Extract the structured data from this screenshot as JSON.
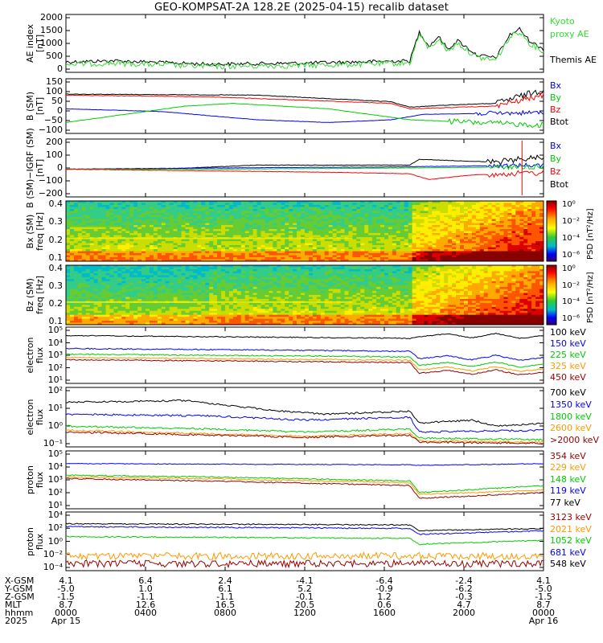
{
  "title": "GEO-KOMPSAT-2A 128.2E (2025-04-15) recalib dataset",
  "colors": {
    "black": "#000000",
    "blue": "#0000ff",
    "green": "#00cc00",
    "red": "#ff0000",
    "orange": "#ff9900",
    "darkred": "#990000",
    "lime": "#33dd33"
  },
  "panels": [
    {
      "id": "ae",
      "ylabel": [
        "AE index",
        "[nT]"
      ],
      "yticks": [
        "2000",
        "1500",
        "1000",
        "500",
        "0"
      ],
      "legend": [
        {
          "text": "Kyoto",
          "color": "#33dd33"
        },
        {
          "text": "proxy AE",
          "color": "#33dd33"
        },
        {
          "text": "",
          "color": "#000000"
        },
        {
          "text": "Themis AE",
          "color": "#000000"
        }
      ]
    },
    {
      "id": "bsm",
      "ylabel": [
        "B (SM)",
        "[nT]"
      ],
      "yticks": [
        "150",
        "100",
        "50",
        "0",
        "−50",
        "−100"
      ],
      "legend": [
        {
          "text": "Bx",
          "color": "#0000ff"
        },
        {
          "text": "By",
          "color": "#00cc00"
        },
        {
          "text": "Bz",
          "color": "#ff0000"
        },
        {
          "text": "Btot",
          "color": "#000000"
        }
      ]
    },
    {
      "id": "bsm-igrf",
      "ylabel": [
        "B (SM)−IGRF (SM)",
        "[nT]"
      ],
      "yticks": [
        "200",
        "100",
        "0",
        "−100",
        "−200"
      ],
      "legend": [
        {
          "text": "Bx",
          "color": "#0000ff"
        },
        {
          "text": "By",
          "color": "#00cc00"
        },
        {
          "text": "Bz",
          "color": "#ff0000"
        },
        {
          "text": "Btot",
          "color": "#000000"
        }
      ]
    },
    {
      "id": "bx-spec",
      "ylabel": [
        "Bx (SM)",
        "freq [Hz]"
      ],
      "yticks": [
        "0.4",
        "0.3",
        "0.2",
        "0.1"
      ],
      "cbticks": [
        "10⁰",
        "10⁻²",
        "10⁻⁴",
        "10⁻⁶"
      ],
      "cblabel": "PSD [nT²/Hz]"
    },
    {
      "id": "bz-spec",
      "ylabel": [
        "Bz (SM)",
        "freq [Hz]"
      ],
      "yticks": [
        "0.4",
        "0.3",
        "0.2",
        "0.1"
      ],
      "cbticks": [
        "10⁰",
        "10⁻²",
        "10⁻⁴",
        "10⁻⁶"
      ],
      "cblabel": "PSD [nT²/Hz]"
    },
    {
      "id": "e-low",
      "ylabel": [
        "electron",
        "flux"
      ],
      "yticks": [
        "10⁵",
        "10⁴",
        "10³",
        "10²",
        "10¹"
      ],
      "legend": [
        {
          "text": "100 keV",
          "color": "#000000"
        },
        {
          "text": "150 keV",
          "color": "#0000ff"
        },
        {
          "text": "225 keV",
          "color": "#00cc00"
        },
        {
          "text": "325 keV",
          "color": "#ff9900"
        },
        {
          "text": "450 keV",
          "color": "#990000"
        }
      ]
    },
    {
      "id": "e-high",
      "ylabel": [
        "electron",
        "flux"
      ],
      "yticks": [
        "10²",
        "10¹",
        "10⁰",
        "10⁻¹"
      ],
      "legend": [
        {
          "text": "700 keV",
          "color": "#000000"
        },
        {
          "text": "1350 keV",
          "color": "#0000ff"
        },
        {
          "text": "1800 keV",
          "color": "#00cc00"
        },
        {
          "text": "2600 keV",
          "color": "#ff9900"
        },
        {
          "text": ">2000 keV",
          "color": "#990000"
        }
      ]
    },
    {
      "id": "p-low",
      "ylabel": [
        "proton",
        "flux"
      ],
      "yticks": [
        "10⁵",
        "10⁴",
        "10³",
        "10²",
        "10¹"
      ],
      "legend": [
        {
          "text": "354 keV",
          "color": "#990000"
        },
        {
          "text": "229 keV",
          "color": "#ff9900"
        },
        {
          "text": "148 keV",
          "color": "#00cc00"
        },
        {
          "text": "119 keV",
          "color": "#0000ff"
        },
        {
          "text": "77 keV",
          "color": "#000000"
        }
      ]
    },
    {
      "id": "p-high",
      "ylabel": [
        "proton",
        "flux"
      ],
      "yticks": [
        "10⁴",
        "10²",
        "10⁰",
        "10⁻²",
        "10⁻⁴"
      ],
      "legend": [
        {
          "text": "3123 keV",
          "color": "#990000"
        },
        {
          "text": "2021 keV",
          "color": "#ff9900"
        },
        {
          "text": "1052 keV",
          "color": "#00cc00"
        },
        {
          "text": "681 keV",
          "color": "#0000ff"
        },
        {
          "text": "548 keV",
          "color": "#000000"
        }
      ]
    }
  ],
  "bottom": {
    "labels": [
      "X-GSM",
      "Y-GSM",
      "Z-GSM",
      "MLT",
      "hhmm",
      "2025"
    ],
    "columns": [
      [
        "4.1",
        "-5.0",
        "-1.5",
        "8.7",
        "0000",
        "Apr 15"
      ],
      [
        "6.4",
        "1.0",
        "-1.1",
        "12.6",
        "0400",
        ""
      ],
      [
        "2.4",
        "6.1",
        "-1.1",
        "16.5",
        "0800",
        ""
      ],
      [
        "-4.1",
        "5.2",
        "-0.1",
        "20.5",
        "1200",
        ""
      ],
      [
        "-6.4",
        "-0.9",
        "1.2",
        "0.6",
        "1600",
        ""
      ],
      [
        "-2.4",
        "-6.2",
        "-0.3",
        "4.7",
        "2000",
        ""
      ],
      [
        "4.1",
        "-5.0",
        "-1.5",
        "8.7",
        "0000",
        "Apr 16"
      ]
    ]
  },
  "chart_data": {
    "type": "line",
    "title": "GEO-KOMPSAT-2A 128.2E (2025-04-15) recalib dataset",
    "x": [
      "0000",
      "0400",
      "0800",
      "1200",
      "1600",
      "2000",
      "0000"
    ],
    "series": [
      {
        "name": "Themis AE",
        "values": [
          300,
          200,
          150,
          250,
          200,
          1300,
          900
        ]
      },
      {
        "name": "Btot",
        "values": [
          110,
          100,
          95,
          90,
          80,
          40,
          100
        ]
      },
      {
        "name": "100 keV",
        "values": [
          30000,
          25000,
          20000,
          20000,
          18000,
          15000,
          30000
        ]
      },
      {
        "name": "700 keV",
        "values": [
          80,
          90,
          40,
          20,
          30,
          2,
          2
        ]
      }
    ]
  }
}
